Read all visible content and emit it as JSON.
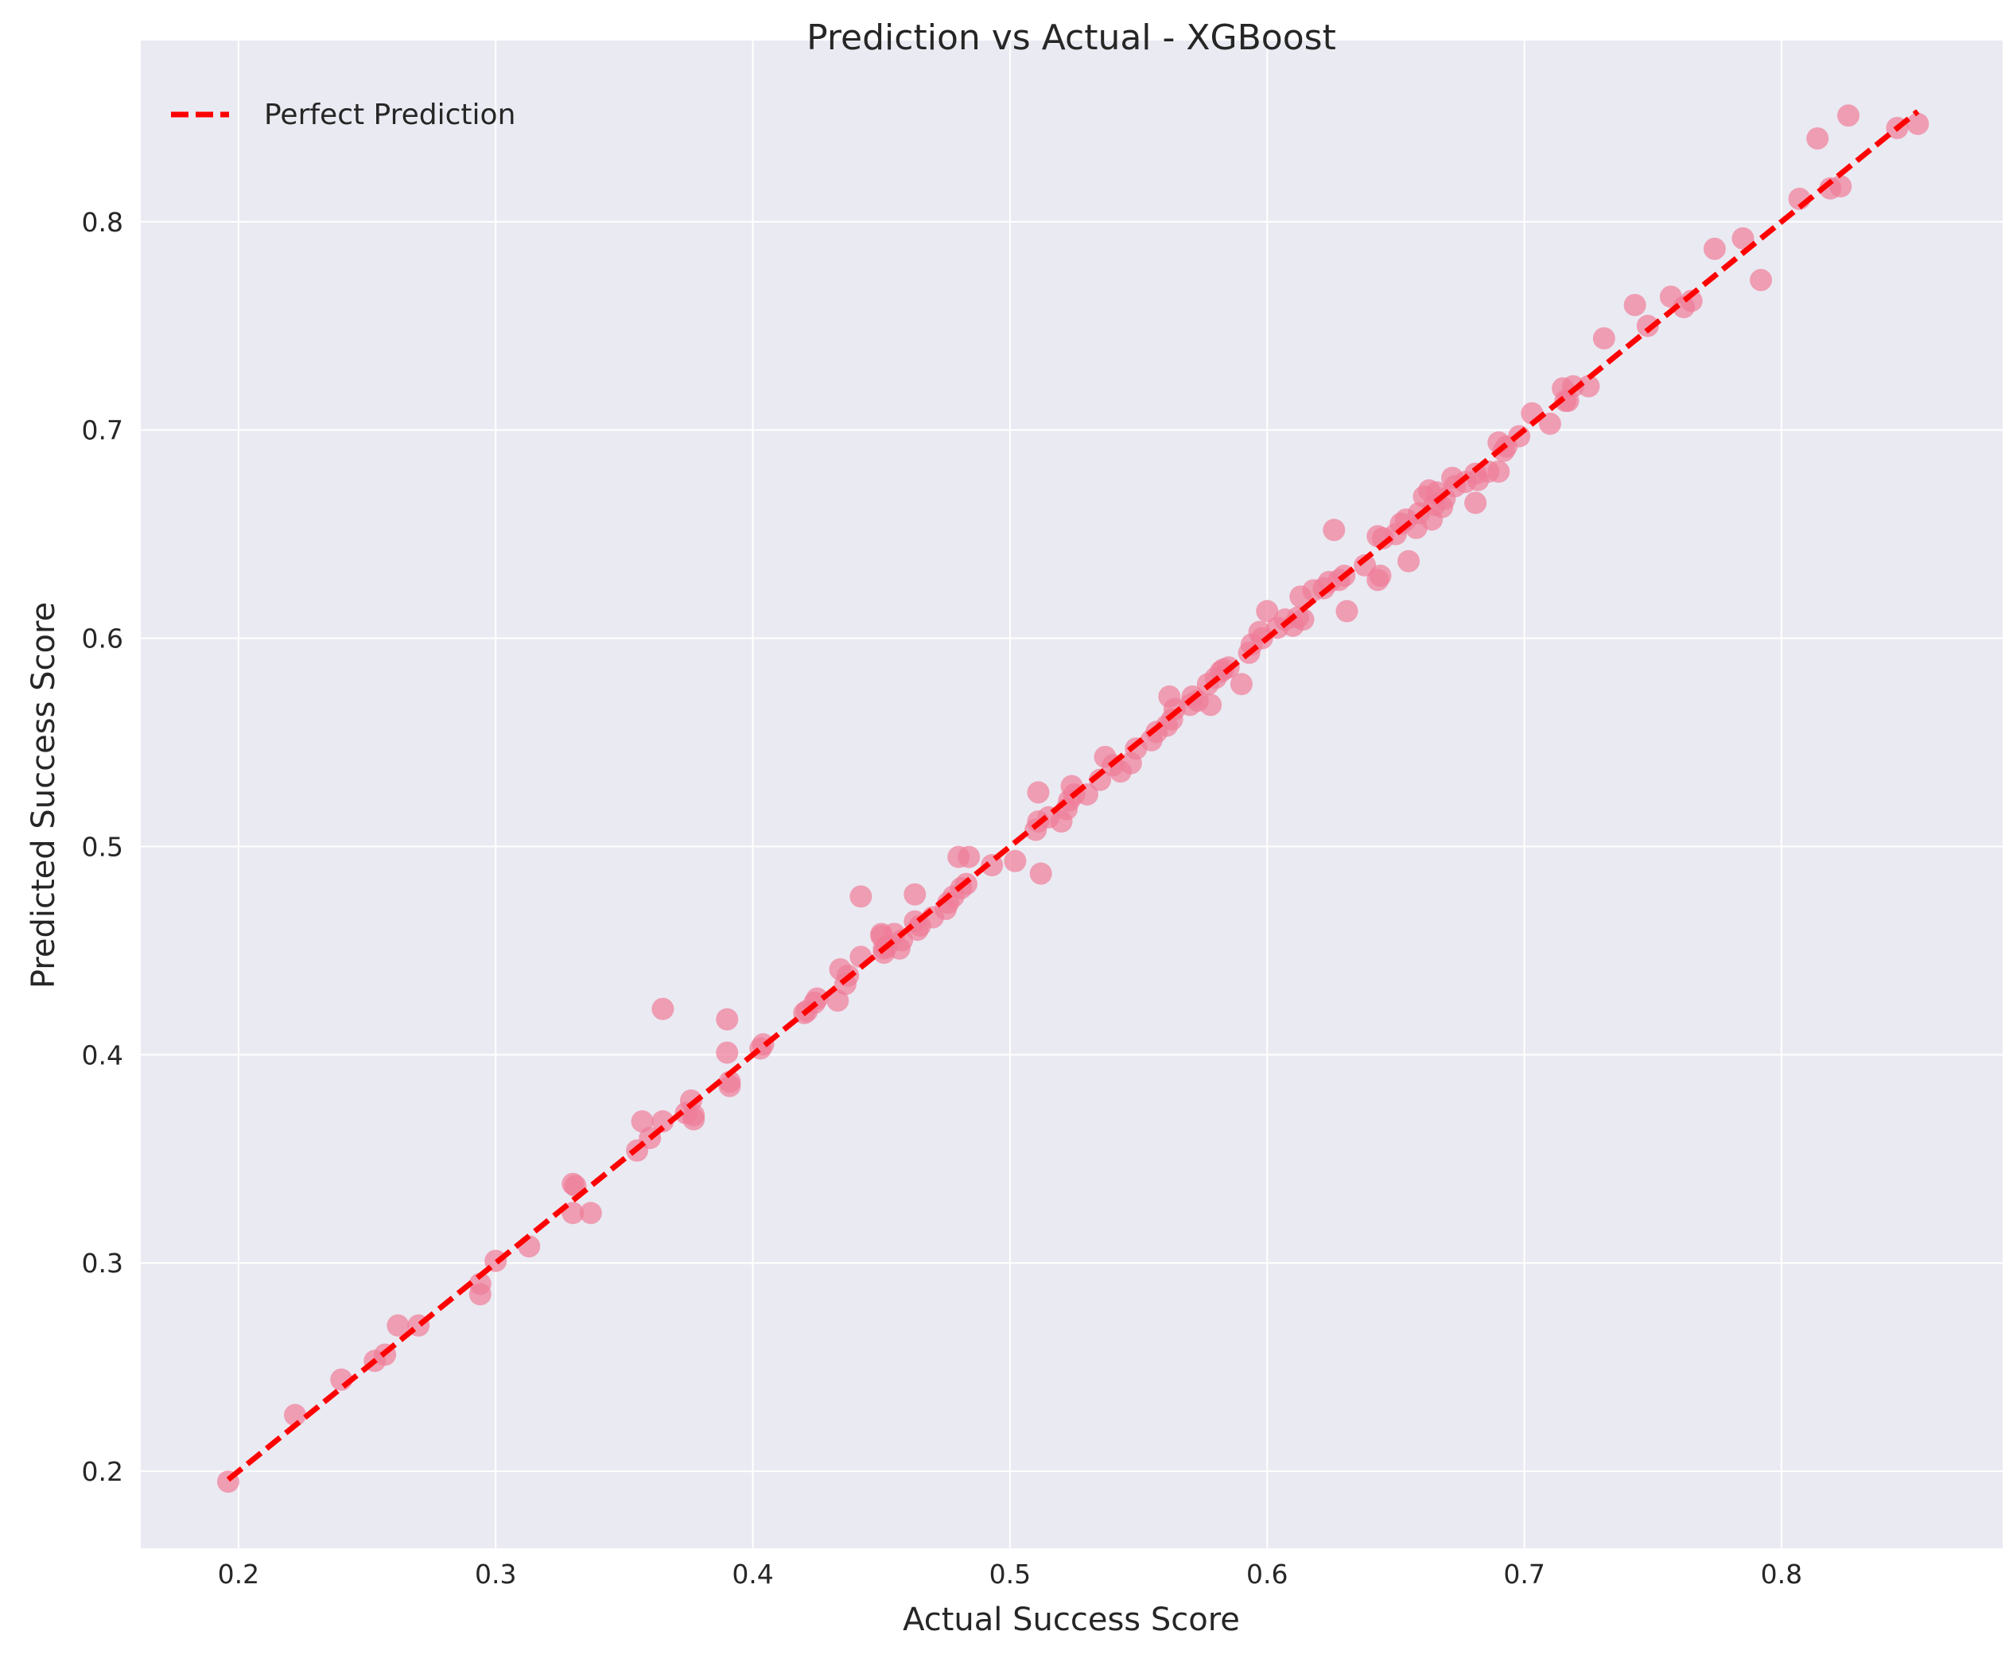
{
  "chart_data": {
    "type": "scatter",
    "title": "Prediction vs Actual - XGBoost",
    "xlabel": "Actual Success Score",
    "ylabel": "Predicted Success Score",
    "xlim": [
      0.162,
      0.886
    ],
    "ylim": [
      0.163,
      0.887
    ],
    "xticks": [
      0.2,
      0.3,
      0.4,
      0.5,
      0.6,
      0.7,
      0.8
    ],
    "yticks": [
      0.2,
      0.3,
      0.4,
      0.5,
      0.6,
      0.7,
      0.8
    ],
    "tick_labels_x": [
      "0.2",
      "0.3",
      "0.4",
      "0.5",
      "0.6",
      "0.7",
      "0.8"
    ],
    "tick_labels_y": [
      "0.2",
      "0.3",
      "0.4",
      "0.5",
      "0.6",
      "0.7",
      "0.8"
    ],
    "grid": true,
    "legend": {
      "position": "top-left",
      "entries": [
        "Perfect Prediction"
      ]
    },
    "reference_line": {
      "name": "Perfect Prediction",
      "x": [
        0.196,
        0.853
      ],
      "y": [
        0.196,
        0.853
      ],
      "style": "dashed",
      "color": "#ff0000"
    },
    "series": [
      {
        "type": "scatter",
        "color": "#f07c98",
        "x": [
          0.196,
          0.222,
          0.24,
          0.253,
          0.257,
          0.262,
          0.27,
          0.294,
          0.294,
          0.3,
          0.313,
          0.33,
          0.33,
          0.331,
          0.337,
          0.355,
          0.357,
          0.36,
          0.365,
          0.365,
          0.374,
          0.376,
          0.377,
          0.377,
          0.39,
          0.39,
          0.391,
          0.391,
          0.403,
          0.404,
          0.42,
          0.421,
          0.424,
          0.425,
          0.433,
          0.434,
          0.436,
          0.437,
          0.442,
          0.442,
          0.45,
          0.45,
          0.451,
          0.451,
          0.452,
          0.455,
          0.457,
          0.458,
          0.463,
          0.463,
          0.464,
          0.465,
          0.47,
          0.475,
          0.476,
          0.478,
          0.48,
          0.481,
          0.483,
          0.484,
          0.493,
          0.502,
          0.51,
          0.511,
          0.511,
          0.512,
          0.515,
          0.52,
          0.522,
          0.523,
          0.524,
          0.525,
          0.53,
          0.535,
          0.537,
          0.54,
          0.543,
          0.547,
          0.549,
          0.555,
          0.557,
          0.561,
          0.562,
          0.563,
          0.564,
          0.57,
          0.571,
          0.573,
          0.577,
          0.578,
          0.58,
          0.582,
          0.583,
          0.585,
          0.59,
          0.593,
          0.594,
          0.597,
          0.598,
          0.6,
          0.604,
          0.607,
          0.61,
          0.612,
          0.613,
          0.614,
          0.618,
          0.622,
          0.624,
          0.626,
          0.628,
          0.63,
          0.631,
          0.638,
          0.643,
          0.643,
          0.644,
          0.645,
          0.65,
          0.652,
          0.654,
          0.655,
          0.658,
          0.659,
          0.661,
          0.663,
          0.664,
          0.665,
          0.666,
          0.668,
          0.669,
          0.672,
          0.673,
          0.677,
          0.681,
          0.681,
          0.682,
          0.686,
          0.69,
          0.69,
          0.692,
          0.693,
          0.698,
          0.703,
          0.71,
          0.715,
          0.716,
          0.717,
          0.719,
          0.725,
          0.731,
          0.743,
          0.748,
          0.757,
          0.762,
          0.765,
          0.774,
          0.785,
          0.792,
          0.807,
          0.814,
          0.819,
          0.823,
          0.826,
          0.845,
          0.853
        ],
        "y": [
          0.195,
          0.227,
          0.244,
          0.253,
          0.256,
          0.27,
          0.27,
          0.285,
          0.29,
          0.301,
          0.308,
          0.324,
          0.338,
          0.337,
          0.324,
          0.354,
          0.368,
          0.36,
          0.422,
          0.368,
          0.372,
          0.378,
          0.371,
          0.369,
          0.417,
          0.401,
          0.385,
          0.387,
          0.403,
          0.405,
          0.42,
          0.421,
          0.425,
          0.427,
          0.426,
          0.441,
          0.434,
          0.438,
          0.476,
          0.447,
          0.457,
          0.458,
          0.451,
          0.449,
          0.452,
          0.458,
          0.451,
          0.455,
          0.477,
          0.464,
          0.46,
          0.462,
          0.466,
          0.47,
          0.473,
          0.476,
          0.495,
          0.48,
          0.482,
          0.495,
          0.491,
          0.493,
          0.508,
          0.526,
          0.512,
          0.487,
          0.514,
          0.512,
          0.518,
          0.522,
          0.529,
          0.525,
          0.525,
          0.532,
          0.543,
          0.539,
          0.536,
          0.54,
          0.547,
          0.551,
          0.555,
          0.558,
          0.572,
          0.561,
          0.566,
          0.568,
          0.572,
          0.57,
          0.578,
          0.568,
          0.581,
          0.584,
          0.585,
          0.586,
          0.578,
          0.593,
          0.597,
          0.603,
          0.6,
          0.613,
          0.605,
          0.609,
          0.606,
          0.61,
          0.62,
          0.609,
          0.623,
          0.624,
          0.627,
          0.652,
          0.628,
          0.63,
          0.613,
          0.635,
          0.628,
          0.649,
          0.63,
          0.648,
          0.65,
          0.655,
          0.657,
          0.637,
          0.653,
          0.66,
          0.668,
          0.671,
          0.657,
          0.664,
          0.67,
          0.663,
          0.667,
          0.677,
          0.673,
          0.675,
          0.665,
          0.679,
          0.676,
          0.68,
          0.68,
          0.694,
          0.69,
          0.692,
          0.697,
          0.708,
          0.703,
          0.72,
          0.714,
          0.714,
          0.721,
          0.721,
          0.744,
          0.76,
          0.75,
          0.764,
          0.759,
          0.762,
          0.787,
          0.792,
          0.772,
          0.811,
          0.84,
          0.816,
          0.817,
          0.851,
          0.845,
          0.847
        ]
      }
    ]
  }
}
